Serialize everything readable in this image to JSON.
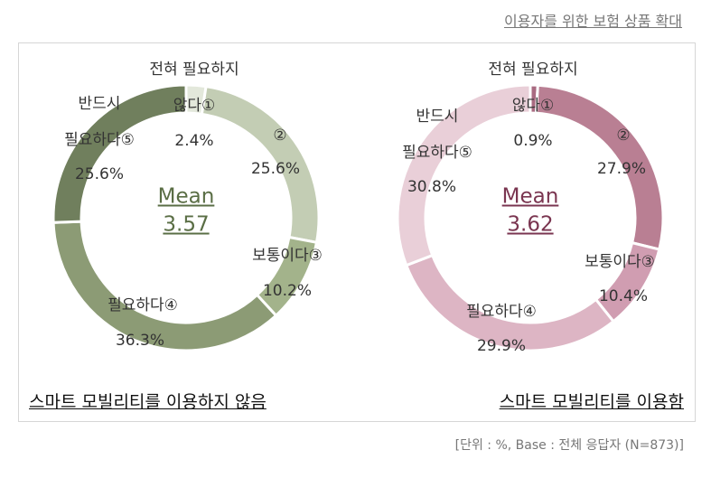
{
  "header": {
    "title": "이용자를 위한 보험 상품 확대"
  },
  "chart_data": [
    {
      "type": "pie",
      "donut": true,
      "title": "스마트 모빌리티를 이용하지 않음",
      "center_label": "Mean",
      "mean": 3.57,
      "mean_color": "#5a6e45",
      "categories": [
        "전혀 필요하지\n않다①",
        "②",
        "보통이다③",
        "필요하다④",
        "반드시\n필요하다⑤"
      ],
      "values": [
        2.4,
        25.6,
        10.2,
        36.3,
        25.6
      ],
      "value_labels": [
        "2.4%",
        "25.6%",
        "10.2%",
        "36.3%",
        "25.6%"
      ],
      "colors": [
        "#e3e8db",
        "#c3cdb4",
        "#a3b38b",
        "#8c9b75",
        "#707f5d"
      ]
    },
    {
      "type": "pie",
      "donut": true,
      "title": "스마트 모빌리티를 이용함",
      "center_label": "Mean",
      "mean": 3.62,
      "mean_color": "#7a3550",
      "categories": [
        "전혀 필요하지\n않다①",
        "②",
        "보통이다③",
        "필요하다④",
        "반드시\n필요하다⑤"
      ],
      "values": [
        0.9,
        27.9,
        10.4,
        29.9,
        30.8
      ],
      "value_labels": [
        "0.9%",
        "27.9%",
        "10.4%",
        "29.9%",
        "30.8%"
      ],
      "colors": [
        "#a96b82",
        "#b97f93",
        "#d09db1",
        "#ddb5c4",
        "#e9cfd8"
      ]
    }
  ],
  "footer": {
    "note": "[단위 : %, Base : 전체 응답자 (N=873)]"
  }
}
